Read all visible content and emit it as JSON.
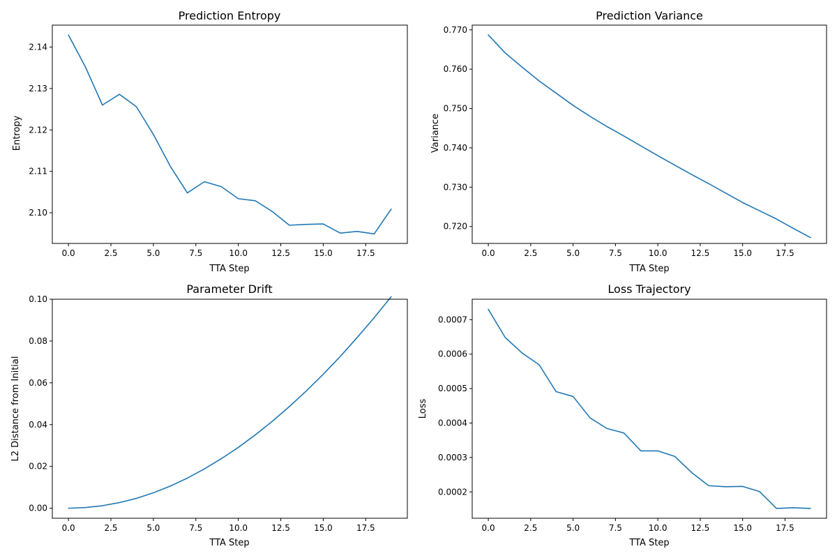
{
  "colors": {
    "line": "#1f77b4",
    "axis": "#000000",
    "background": "#ffffff"
  },
  "chart_data": [
    {
      "type": "line",
      "title": "Prediction Entropy",
      "xlabel": "TTA Step",
      "ylabel": "Entropy",
      "xlim": [
        -0.95,
        19.95
      ],
      "ylim": [
        2.0926,
        2.1453
      ],
      "xticks": [
        0,
        2.5,
        5,
        7.5,
        10,
        12.5,
        15,
        17.5
      ],
      "xtick_labels": [
        "0.0",
        "2.5",
        "5.0",
        "7.5",
        "10.0",
        "12.5",
        "15.0",
        "17.5"
      ],
      "yticks": [
        2.1,
        2.11,
        2.12,
        2.13,
        2.14
      ],
      "ytick_labels": [
        "2.10",
        "2.11",
        "2.12",
        "2.13",
        "2.14"
      ],
      "x": [
        0,
        1,
        2,
        3,
        4,
        5,
        6,
        7,
        8,
        9,
        10,
        11,
        12,
        13,
        14,
        15,
        16,
        17,
        18,
        19
      ],
      "y": [
        2.1429,
        2.1352,
        2.126,
        2.1286,
        2.1256,
        2.1189,
        2.1112,
        2.1048,
        2.1075,
        2.1063,
        2.1034,
        2.1029,
        2.1003,
        2.097,
        2.0972,
        2.0973,
        2.0951,
        2.0955,
        2.0949,
        2.1009
      ]
    },
    {
      "type": "line",
      "title": "Prediction Variance",
      "xlabel": "TTA Step",
      "ylabel": "Variance",
      "xlim": [
        -0.95,
        19.95
      ],
      "ylim": [
        0.7157,
        0.7712
      ],
      "xticks": [
        0,
        2.5,
        5,
        7.5,
        10,
        12.5,
        15,
        17.5
      ],
      "xtick_labels": [
        "0.0",
        "2.5",
        "5.0",
        "7.5",
        "10.0",
        "12.5",
        "15.0",
        "17.5"
      ],
      "yticks": [
        0.72,
        0.73,
        0.74,
        0.75,
        0.76,
        0.77
      ],
      "ytick_labels": [
        "0.720",
        "0.730",
        "0.740",
        "0.750",
        "0.760",
        "0.770"
      ],
      "x": [
        0,
        1,
        2,
        3,
        4,
        5,
        6,
        7,
        8,
        9,
        10,
        11,
        12,
        13,
        14,
        15,
        16,
        17,
        18,
        19
      ],
      "y": [
        0.7687,
        0.7641,
        0.7605,
        0.757,
        0.7539,
        0.7508,
        0.748,
        0.7454,
        0.743,
        0.7405,
        0.738,
        0.7356,
        0.7332,
        0.7309,
        0.7285,
        0.7261,
        0.724,
        0.7219,
        0.7195,
        0.7172
      ]
    },
    {
      "type": "line",
      "title": "Parameter Drift",
      "xlabel": "TTA Step",
      "ylabel": "L2 Distance from Initial",
      "xlim": [
        -0.95,
        19.95
      ],
      "ylim": [
        -0.0048,
        0.1
      ],
      "xticks": [
        0,
        2.5,
        5,
        7.5,
        10,
        12.5,
        15,
        17.5
      ],
      "xtick_labels": [
        "0.0",
        "2.5",
        "5.0",
        "7.5",
        "10.0",
        "12.5",
        "15.0",
        "17.5"
      ],
      "yticks": [
        0.0,
        0.02,
        0.04,
        0.06,
        0.08,
        0.1
      ],
      "ytick_labels": [
        "0.00",
        "0.02",
        "0.04",
        "0.06",
        "0.08",
        "0.10"
      ],
      "x": [
        0,
        1,
        2,
        3,
        4,
        5,
        6,
        7,
        8,
        9,
        10,
        11,
        12,
        13,
        14,
        15,
        16,
        17,
        18,
        19
      ],
      "y": [
        0.0,
        0.0003,
        0.0012,
        0.0027,
        0.0047,
        0.0074,
        0.0106,
        0.0144,
        0.0188,
        0.0237,
        0.0291,
        0.0351,
        0.0416,
        0.0486,
        0.0561,
        0.0641,
        0.0726,
        0.0817,
        0.0912,
        0.1012
      ]
    },
    {
      "type": "line",
      "title": "Loss Trajectory",
      "xlabel": "TTA Step",
      "ylabel": "Loss",
      "xlim": [
        -0.95,
        19.95
      ],
      "ylim": [
        0.0001236,
        0.0007593
      ],
      "xticks": [
        0,
        2.5,
        5,
        7.5,
        10,
        12.5,
        15,
        17.5
      ],
      "xtick_labels": [
        "0.0",
        "2.5",
        "5.0",
        "7.5",
        "10.0",
        "12.5",
        "15.0",
        "17.5"
      ],
      "yticks": [
        0.0002,
        0.0003,
        0.0004,
        0.0005,
        0.0006,
        0.0007
      ],
      "ytick_labels": [
        "0.0002",
        "0.0003",
        "0.0004",
        "0.0005",
        "0.0006",
        "0.0007"
      ],
      "x": [
        0,
        1,
        2,
        3,
        4,
        5,
        6,
        7,
        8,
        9,
        10,
        11,
        12,
        13,
        14,
        15,
        16,
        17,
        18,
        19
      ],
      "y": [
        0.00073,
        0.000648,
        0.000603,
        0.000569,
        0.000491,
        0.000477,
        0.000415,
        0.000384,
        0.000371,
        0.000319,
        0.000319,
        0.000303,
        0.000256,
        0.000218,
        0.000215,
        0.000216,
        0.000201,
        0.000152,
        0.000154,
        0.000152
      ]
    }
  ]
}
